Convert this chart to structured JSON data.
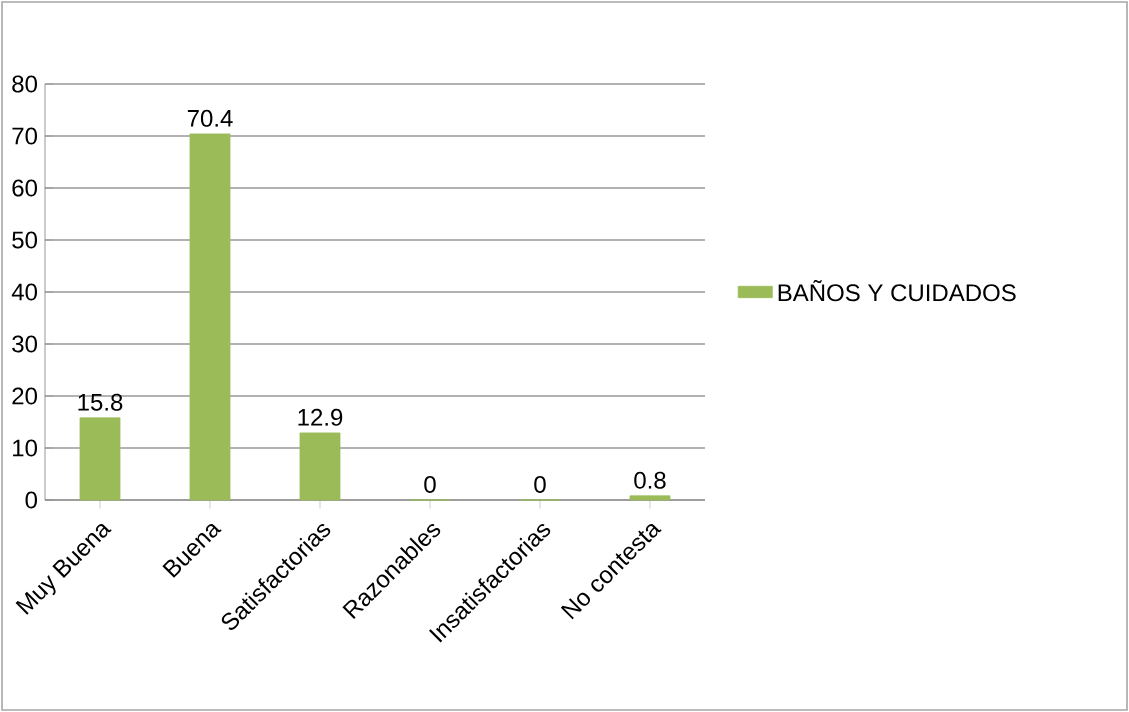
{
  "chart_data": {
    "type": "bar",
    "categories": [
      "Muy Buena",
      "Buena",
      "Satisfactorias",
      "Razonables",
      "Insatisfactorias",
      "No contesta"
    ],
    "series": [
      {
        "name": "BAÑOS Y CUIDADOS",
        "color": "#9bbb59",
        "values": [
          15.8,
          70.4,
          12.9,
          0,
          0,
          0.8
        ]
      }
    ],
    "ylim": [
      0,
      80
    ],
    "yticks": [
      0,
      10,
      20,
      30,
      40,
      50,
      60,
      70,
      80
    ],
    "grid": "y",
    "legend": "right",
    "data_labels": true
  }
}
